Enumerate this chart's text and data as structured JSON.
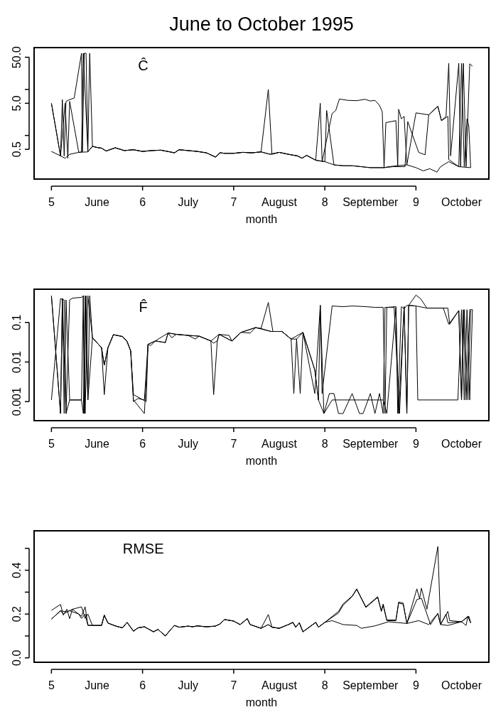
{
  "chart_data": [
    {
      "type": "line",
      "title": "June to October 1995",
      "xlabel": "month",
      "log": true,
      "annotations": [
        "Ĉ"
      ],
      "xlim": [
        4.81,
        9.8
      ],
      "xticks": [
        5,
        {
          "value": 5.5,
          "label": "June"
        },
        6,
        {
          "value": 6.5,
          "label": "July"
        },
        7,
        {
          "value": 7.5,
          "label": "August"
        },
        8,
        {
          "value": 8.5,
          "label": "September"
        },
        9,
        {
          "value": 9.5,
          "label": "October"
        }
      ],
      "ylim": [
        0.113,
        81
      ],
      "yticks": [
        {
          "value": 0.5,
          "label": "0.5"
        },
        {
          "value": 1,
          "label": null
        },
        {
          "value": 5,
          "label": "5.0"
        },
        {
          "value": 10,
          "label": null
        },
        {
          "value": 50,
          "label": "50.0"
        }
      ],
      "series": [
        {
          "color": "#000000",
          "x": [
            5.0,
            5.1,
            5.15,
            5.2,
            5.3,
            5.4,
            5.45,
            5.5,
            5.55,
            5.6,
            5.7,
            5.8,
            5.9,
            6.0,
            6.1,
            6.2,
            6.3,
            6.35,
            6.4,
            6.5,
            6.6,
            6.7,
            6.8,
            6.85,
            6.9,
            7.0,
            7.1,
            7.2,
            7.3,
            7.4,
            7.5,
            7.6,
            7.7,
            7.75,
            7.8,
            7.9,
            8.0,
            8.1,
            8.2,
            8.3,
            8.4,
            8.5,
            8.6,
            8.65,
            8.7,
            8.8,
            8.9,
            9.0,
            9.08,
            9.15,
            9.23,
            9.27,
            9.36,
            9.47,
            9.6
          ],
          "values": [
            0.45,
            0.36,
            0.32,
            0.39,
            0.43,
            0.44,
            0.58,
            0.55,
            0.53,
            0.46,
            0.54,
            0.47,
            0.49,
            0.45,
            0.47,
            0.48,
            0.44,
            0.42,
            0.49,
            0.47,
            0.45,
            0.42,
            0.34,
            0.42,
            0.41,
            0.41,
            0.43,
            0.42,
            0.44,
            0.39,
            0.43,
            0.39,
            0.36,
            0.32,
            0.37,
            0.29,
            0.27,
            0.23,
            0.22,
            0.22,
            0.21,
            0.2,
            0.2,
            0.2,
            0.21,
            0.22,
            0.23,
            0.2,
            0.17,
            0.19,
            0.16,
            0.21,
            0.27,
            0.21,
            0.2
          ]
        },
        {
          "color": "#000000",
          "x": [
            5.0,
            5.1,
            5.12,
            5.14,
            5.16,
            5.2,
            5.25,
            5.33,
            5.34,
            5.36,
            5.38,
            5.4,
            5.42,
            5.45,
            5.5,
            5.55,
            5.6,
            5.7,
            5.8,
            5.9,
            6.0,
            6.1,
            6.2,
            6.3,
            6.35,
            6.4,
            6.5,
            6.6,
            6.7,
            6.8,
            6.85,
            6.9,
            7.0,
            7.1,
            7.2,
            7.3,
            7.38,
            7.42,
            7.5,
            7.6,
            7.7,
            7.75,
            7.8,
            7.9,
            7.95,
            7.97,
            8.08,
            8.12,
            8.16,
            8.25,
            8.35,
            8.44,
            8.5,
            8.55,
            8.6,
            8.63,
            8.65,
            8.67,
            8.78,
            8.8,
            8.81,
            8.84,
            8.87,
            8.9,
            9.0,
            9.14,
            9.24,
            9.28,
            9.33,
            9.36,
            9.38,
            9.47,
            9.49,
            9.52,
            9.55,
            9.59,
            9.62
          ],
          "values": [
            5.0,
            0.36,
            6.0,
            0.36,
            5.5,
            6.0,
            6.5,
            61,
            0.44,
            61,
            61,
            0.47,
            61,
            0.58,
            0.55,
            0.53,
            0.46,
            0.54,
            0.47,
            0.49,
            0.45,
            0.47,
            0.48,
            0.44,
            0.42,
            0.49,
            0.47,
            0.45,
            0.42,
            0.34,
            0.42,
            0.41,
            0.41,
            0.43,
            0.42,
            0.44,
            10,
            0.39,
            0.43,
            0.39,
            0.36,
            0.32,
            0.37,
            0.29,
            5.0,
            0.27,
            3.0,
            3.5,
            6.2,
            5.8,
            5.7,
            6.1,
            5.6,
            5.8,
            4.5,
            3.3,
            0.2,
            1.9,
            2.1,
            0.22,
            3.7,
            2.3,
            2.6,
            0.23,
            3.1,
            2.8,
            4.3,
            2.1,
            2.6,
            37,
            0.36,
            37,
            0.21,
            37,
            0.21,
            36,
            32
          ]
        },
        {
          "color": "#000000",
          "x": [
            5.0,
            5.1,
            5.15,
            5.18,
            5.2,
            5.3,
            5.33,
            5.35,
            5.4,
            5.45,
            5.5,
            5.55,
            5.6,
            5.7,
            5.8,
            5.9,
            6.0,
            6.1,
            6.2,
            6.3,
            6.35,
            6.4,
            6.5,
            6.6,
            6.7,
            6.8,
            6.85,
            6.9,
            7.0,
            7.1,
            7.2,
            7.3,
            7.4,
            7.5,
            7.6,
            7.7,
            7.75,
            7.8,
            7.9,
            8.0,
            8.02,
            8.1,
            8.2,
            8.3,
            8.4,
            8.5,
            8.6,
            8.65,
            8.75,
            8.88,
            8.91,
            9.03,
            9.1,
            9.14,
            9.24,
            9.28,
            9.35,
            9.36,
            9.47,
            9.5,
            9.53,
            9.56,
            9.58,
            9.6
          ],
          "values": [
            5.0,
            0.36,
            5.0,
            0.32,
            5.5,
            0.43,
            0.44,
            61,
            0.44,
            0.58,
            0.55,
            0.53,
            0.46,
            0.54,
            0.47,
            0.49,
            0.45,
            0.47,
            0.48,
            0.44,
            0.42,
            0.49,
            0.47,
            0.45,
            0.42,
            0.34,
            0.42,
            0.41,
            0.41,
            0.43,
            0.42,
            0.44,
            0.39,
            0.43,
            0.39,
            0.36,
            0.32,
            0.37,
            0.29,
            0.27,
            3.5,
            0.23,
            0.22,
            0.22,
            0.21,
            0.2,
            0.2,
            0.2,
            0.21,
            0.21,
            2.0,
            0.43,
            0.38,
            2.8,
            4.3,
            2.1,
            2.6,
            0.3,
            0.21,
            37,
            0.21,
            2.3,
            1.6,
            0.2
          ]
        }
      ]
    },
    {
      "type": "line",
      "xlabel": "month",
      "log": true,
      "annotations": [
        "F̂"
      ],
      "xlim": [
        4.81,
        9.8
      ],
      "xticks": [
        5,
        {
          "value": 5.5,
          "label": "June"
        },
        6,
        {
          "value": 6.5,
          "label": "July"
        },
        7,
        {
          "value": 7.5,
          "label": "August"
        },
        8,
        {
          "value": 8.5,
          "label": "September"
        },
        9,
        {
          "value": 9.5,
          "label": "October"
        }
      ],
      "ylim": [
        0.00033,
        0.69
      ],
      "yticks": [
        0.001,
        0.01,
        0.1
      ],
      "series": [
        {
          "color": "#000000",
          "x": [
            5.0,
            5.1,
            5.12,
            5.14,
            5.16,
            5.2,
            5.33,
            5.35,
            5.37,
            5.4,
            5.42,
            5.45,
            5.55,
            5.58,
            5.62,
            5.68,
            5.78,
            5.83,
            5.87,
            5.9,
            5.95,
            6.02,
            6.06,
            6.09,
            6.14,
            6.25,
            6.28,
            6.32,
            6.37,
            6.5,
            6.58,
            6.62,
            6.75,
            6.78,
            6.82,
            6.84,
            6.95,
            6.98,
            7.02,
            7.08,
            7.18,
            7.24,
            7.3,
            7.41,
            7.53,
            7.63,
            7.66,
            7.69,
            7.76,
            7.89,
            7.93,
            7.99,
            8.08,
            8.2,
            8.3,
            8.4,
            8.5,
            8.64,
            8.68,
            8.78,
            8.81,
            8.87,
            8.9,
            8.92,
            9.0,
            9.05,
            9.12,
            9.2,
            9.3,
            9.36,
            9.47,
            9.5,
            9.52,
            9.55,
            9.59,
            9.62
          ],
          "values": [
            0.47,
            0.0005,
            0.4,
            0.0005,
            0.37,
            0.0011,
            0.0011,
            0.0005,
            0.47,
            0.0011,
            0.47,
            0.041,
            0.023,
            0.0083,
            0.023,
            0.049,
            0.044,
            0.033,
            0.019,
            0.001,
            0.0012,
            0.0011,
            0.028,
            0.026,
            0.034,
            0.031,
            0.054,
            0.041,
            0.05,
            0.047,
            0.038,
            0.045,
            0.034,
            0.03,
            0.034,
            0.05,
            0.047,
            0.034,
            0.041,
            0.056,
            0.054,
            0.074,
            0.07,
            0.059,
            0.059,
            0.038,
            0.0016,
            0.038,
            0.056,
            0.0063,
            0.0011,
            0.0005,
            0.0011,
            0.0011,
            0.0011,
            0.0011,
            0.0011,
            0.0011,
            0.0005,
            0.24,
            0.0005,
            0.25,
            0.0005,
            0.27,
            0.49,
            0.4,
            0.23,
            0.23,
            0.23,
            0.09,
            0.2,
            0.0011,
            0.21,
            0.0011,
            0.21,
            0.21
          ]
        },
        {
          "color": "#000000",
          "x": [
            5.0,
            5.1,
            5.14,
            5.16,
            5.2,
            5.23,
            5.33,
            5.35,
            5.36,
            5.38,
            5.4,
            5.45,
            5.55,
            5.58,
            5.62,
            5.68,
            5.78,
            5.83,
            5.87,
            5.9,
            6.02,
            6.06,
            6.14,
            6.25,
            6.28,
            6.37,
            6.5,
            6.62,
            6.75,
            6.78,
            6.82,
            6.84,
            6.98,
            7.08,
            7.24,
            7.3,
            7.38,
            7.43,
            7.53,
            7.63,
            7.69,
            7.73,
            7.76,
            7.89,
            7.95,
            7.97,
            8.08,
            8.2,
            8.3,
            8.45,
            8.55,
            8.64,
            8.66,
            8.68,
            8.78,
            8.8,
            8.84,
            8.87,
            8.9,
            9.0,
            9.02,
            9.46,
            9.5,
            9.53,
            9.56,
            9.59,
            9.62
          ],
          "values": [
            0.0011,
            0.4,
            0.37,
            0.0005,
            0.37,
            0.41,
            0.43,
            0.47,
            0.0005,
            0.47,
            0.0011,
            0.041,
            0.023,
            0.0015,
            0.023,
            0.049,
            0.044,
            0.033,
            0.019,
            0.0011,
            0.0005,
            0.028,
            0.034,
            0.031,
            0.054,
            0.05,
            0.047,
            0.045,
            0.034,
            0.0015,
            0.034,
            0.05,
            0.034,
            0.056,
            0.074,
            0.07,
            0.32,
            0.059,
            0.059,
            0.038,
            0.038,
            0.0016,
            0.056,
            0.0016,
            0.27,
            0.0016,
            0.26,
            0.25,
            0.26,
            0.25,
            0.24,
            0.24,
            0.0005,
            0.24,
            0.25,
            0.0005,
            0.25,
            0.22,
            0.27,
            0.26,
            0.0011,
            0.0011,
            0.21,
            0.0011,
            0.21,
            0.0011,
            0.21
          ]
        },
        {
          "color": "#000000",
          "x": [
            5.0,
            5.1,
            5.12,
            5.16,
            5.2,
            5.33,
            5.35,
            5.37,
            5.4,
            5.45,
            5.55,
            5.58,
            5.62,
            5.68,
            5.78,
            5.83,
            5.87,
            5.9,
            6.04,
            6.06,
            6.14,
            6.28,
            6.37,
            6.5,
            6.62,
            6.75,
            6.84,
            6.98,
            7.08,
            7.24,
            7.41,
            7.53,
            7.63,
            7.76,
            7.89,
            7.93,
            7.95,
            7.99,
            8.05,
            8.1,
            8.15,
            8.2,
            8.3,
            8.38,
            8.42,
            8.5,
            8.55,
            8.6,
            8.64,
            8.66,
            8.76,
            8.82,
            8.87,
            8.9,
            8.92,
            9.0,
            9.12,
            9.25,
            9.35,
            9.37,
            9.47,
            9.5,
            9.53,
            9.57,
            9.6
          ],
          "values": [
            0.47,
            0.0005,
            0.4,
            0.0005,
            0.0011,
            0.0011,
            0.47,
            0.0005,
            0.47,
            0.041,
            0.023,
            0.0083,
            0.023,
            0.049,
            0.044,
            0.033,
            0.019,
            0.0015,
            0.001,
            0.028,
            0.034,
            0.054,
            0.05,
            0.047,
            0.045,
            0.034,
            0.05,
            0.034,
            0.056,
            0.074,
            0.059,
            0.059,
            0.038,
            0.056,
            0.0063,
            0.0011,
            0.27,
            0.0005,
            0.0016,
            0.0016,
            0.0005,
            0.0005,
            0.0016,
            0.0005,
            0.0005,
            0.0016,
            0.0005,
            0.0016,
            0.0005,
            0.24,
            0.24,
            0.0005,
            0.25,
            0.0005,
            0.27,
            0.26,
            0.23,
            0.23,
            0.23,
            0.09,
            0.2,
            0.0011,
            0.21,
            0.0011,
            0.2
          ]
        }
      ]
    },
    {
      "type": "line",
      "xlabel": "month",
      "annotations": [
        "RMSE"
      ],
      "xlim": [
        4.81,
        9.8
      ],
      "xticks": [
        5,
        {
          "value": 5.5,
          "label": "June"
        },
        6,
        {
          "value": 6.5,
          "label": "July"
        },
        7,
        {
          "value": 7.5,
          "label": "August"
        },
        8,
        {
          "value": 8.5,
          "label": "September"
        },
        9,
        {
          "value": 9.5,
          "label": "October"
        }
      ],
      "ylim": [
        -0.02,
        0.58
      ],
      "yticks": [
        {
          "value": 0,
          "label": "0.0"
        },
        {
          "value": 0.1,
          "label": null
        },
        {
          "value": 0.2,
          "label": "0.2"
        },
        {
          "value": 0.3,
          "label": null
        },
        {
          "value": 0.4,
          "label": "0.4"
        },
        {
          "value": 0.5,
          "label": null
        }
      ],
      "series": [
        {
          "color": "#000000",
          "x": [
            5.0,
            5.1,
            5.13,
            5.17,
            5.2,
            5.23,
            5.33,
            5.37,
            5.4,
            5.45,
            5.55,
            5.58,
            5.62,
            5.7,
            5.78,
            5.83,
            5.9,
            5.95,
            6.02,
            6.12,
            6.17,
            6.25,
            6.3,
            6.35,
            6.4,
            6.5,
            6.55,
            6.6,
            6.7,
            6.8,
            6.85,
            6.9,
            7.0,
            7.07,
            7.15,
            7.18,
            7.3,
            7.38,
            7.42,
            7.5,
            7.6,
            7.65,
            7.68,
            7.72,
            7.76,
            7.9,
            7.93,
            8.0,
            8.15,
            8.2,
            8.3,
            8.35,
            8.45,
            8.58,
            8.62,
            8.64,
            8.68,
            8.78,
            8.81,
            8.86,
            8.9,
            9.01,
            9.04,
            9.06,
            9.12,
            9.24,
            9.27,
            9.35,
            9.37,
            9.5,
            9.55,
            9.57,
            9.6
          ],
          "values": [
            0.217,
            0.244,
            0.195,
            0.222,
            0.179,
            0.222,
            0.233,
            0.18,
            0.2,
            0.148,
            0.148,
            0.195,
            0.159,
            0.146,
            0.137,
            0.162,
            0.122,
            0.137,
            0.142,
            0.119,
            0.13,
            0.1,
            0.125,
            0.148,
            0.14,
            0.145,
            0.142,
            0.146,
            0.142,
            0.145,
            0.155,
            0.175,
            0.168,
            0.152,
            0.179,
            0.152,
            0.135,
            0.198,
            0.14,
            0.135,
            0.152,
            0.162,
            0.14,
            0.16,
            0.119,
            0.162,
            0.14,
            0.162,
            0.212,
            0.246,
            0.282,
            0.315,
            0.233,
            0.279,
            0.215,
            0.246,
            0.173,
            0.173,
            0.255,
            0.25,
            0.157,
            0.315,
            0.27,
            0.318,
            0.222,
            0.508,
            0.152,
            0.212,
            0.17,
            0.165,
            0.148,
            0.19,
            0.16
          ]
        },
        {
          "color": "#000000",
          "x": [
            5.0,
            5.1,
            5.13,
            5.17,
            5.2,
            5.3,
            5.33,
            5.37,
            5.4,
            5.45,
            5.55,
            5.58,
            5.62,
            5.7,
            5.78,
            5.83,
            5.9,
            5.95,
            6.02,
            6.12,
            6.17,
            6.25,
            6.3,
            6.35,
            6.4,
            6.5,
            6.55,
            6.6,
            6.7,
            6.8,
            6.85,
            6.9,
            7.0,
            7.07,
            7.15,
            7.18,
            7.3,
            7.38,
            7.42,
            7.5,
            7.6,
            7.65,
            7.68,
            7.72,
            7.76,
            7.9,
            7.93,
            8.0,
            8.15,
            8.2,
            8.3,
            8.35,
            8.45,
            8.58,
            8.62,
            8.64,
            8.68,
            8.78,
            8.81,
            8.86,
            8.9,
            9.01,
            9.06,
            9.12,
            9.16,
            9.24,
            9.27,
            9.33,
            9.35,
            9.5,
            9.57,
            9.6
          ],
          "values": [
            0.177,
            0.215,
            0.2,
            0.21,
            0.215,
            0.2,
            0.18,
            0.2,
            0.148,
            0.148,
            0.148,
            0.195,
            0.159,
            0.146,
            0.137,
            0.162,
            0.122,
            0.137,
            0.142,
            0.119,
            0.13,
            0.1,
            0.125,
            0.148,
            0.14,
            0.145,
            0.142,
            0.146,
            0.142,
            0.145,
            0.155,
            0.175,
            0.168,
            0.152,
            0.179,
            0.152,
            0.135,
            0.152,
            0.14,
            0.135,
            0.152,
            0.162,
            0.14,
            0.16,
            0.119,
            0.162,
            0.14,
            0.162,
            0.205,
            0.24,
            0.28,
            0.312,
            0.23,
            0.276,
            0.212,
            0.24,
            0.17,
            0.17,
            0.25,
            0.245,
            0.157,
            0.266,
            0.272,
            0.2,
            0.152,
            0.203,
            0.152,
            0.2,
            0.16,
            0.165,
            0.19,
            0.16
          ]
        },
        {
          "color": "#000000",
          "x": [
            5.0,
            5.1,
            5.17,
            5.23,
            5.33,
            5.37,
            5.4,
            5.45,
            5.55,
            5.58,
            5.62,
            5.7,
            5.78,
            5.83,
            5.9,
            5.95,
            6.02,
            6.12,
            6.17,
            6.25,
            6.3,
            6.35,
            6.4,
            6.5,
            6.55,
            6.6,
            6.7,
            6.8,
            6.85,
            6.9,
            7.0,
            7.07,
            7.15,
            7.18,
            7.3,
            7.38,
            7.42,
            7.5,
            7.6,
            7.65,
            7.68,
            7.72,
            7.76,
            7.9,
            7.93,
            8.0,
            8.08,
            8.2,
            8.35,
            8.4,
            8.55,
            8.7,
            8.9,
            9.03,
            9.14,
            9.24,
            9.27,
            9.35,
            9.5,
            9.58,
            9.6
          ],
          "values": [
            0.177,
            0.215,
            0.21,
            0.222,
            0.19,
            0.233,
            0.15,
            0.148,
            0.148,
            0.195,
            0.159,
            0.146,
            0.137,
            0.162,
            0.122,
            0.137,
            0.142,
            0.119,
            0.13,
            0.1,
            0.125,
            0.148,
            0.14,
            0.145,
            0.142,
            0.146,
            0.142,
            0.145,
            0.155,
            0.175,
            0.168,
            0.152,
            0.179,
            0.152,
            0.135,
            0.152,
            0.14,
            0.135,
            0.152,
            0.162,
            0.14,
            0.16,
            0.119,
            0.162,
            0.14,
            0.162,
            0.17,
            0.152,
            0.148,
            0.135,
            0.146,
            0.165,
            0.157,
            0.17,
            0.152,
            0.203,
            0.152,
            0.148,
            0.165,
            0.19,
            0.16
          ]
        }
      ]
    }
  ]
}
